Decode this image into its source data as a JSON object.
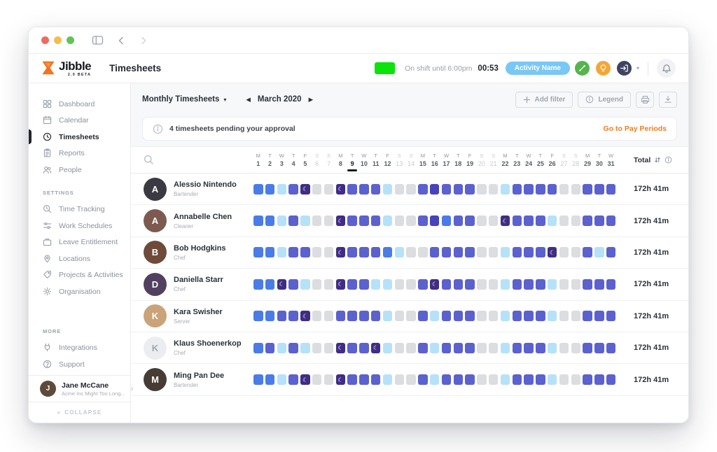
{
  "window_controls": {
    "buttons": [
      "close",
      "minimize",
      "zoom"
    ]
  },
  "titlebar": {
    "icons": [
      "sidebar-toggle",
      "back-chevron",
      "forward-chevron"
    ]
  },
  "header": {
    "logo_name": "Jibble",
    "logo_sub": "2.0 BETA",
    "page_title": "Timesheets",
    "status_color": "#0be30b",
    "shift_status": "On shift until 6:00pm",
    "timer": "00:53",
    "activity_badge": {
      "label": "Activity Name",
      "color": "#79c7f5"
    },
    "quick_circles": [
      {
        "icon": "activity",
        "color": "#56b44e"
      },
      {
        "icon": "bulb",
        "color": "#f2a73b"
      },
      {
        "icon": "clock-out",
        "color": "#3d4360"
      }
    ]
  },
  "sidebar": {
    "main": [
      {
        "label": "Dashboard",
        "icon": "dashboard",
        "active": false
      },
      {
        "label": "Calendar",
        "icon": "calendar",
        "active": false
      },
      {
        "label": "Timesheets",
        "icon": "clock",
        "active": true
      },
      {
        "label": "Reports",
        "icon": "clipboard",
        "active": false
      },
      {
        "label": "People",
        "icon": "people",
        "active": false
      }
    ],
    "settings_label": "SETTINGS",
    "settings": [
      {
        "label": "Time Tracking",
        "icon": "timetracking"
      },
      {
        "label": "Work Schedules",
        "icon": "schedules"
      },
      {
        "label": "Leave Entitlement",
        "icon": "briefcase"
      },
      {
        "label": "Locations",
        "icon": "location"
      },
      {
        "label": "Projects & Activities",
        "icon": "tag"
      },
      {
        "label": "Organisation",
        "icon": "gear"
      }
    ],
    "more_label": "MORE",
    "more": [
      {
        "label": "Integrations",
        "icon": "plug"
      },
      {
        "label": "Support",
        "icon": "question"
      }
    ],
    "user": {
      "name": "Jane McCane",
      "org": "Acme Inc Might Too Long...",
      "initial": "J",
      "avatar_color": "#5d4a3a"
    },
    "collapse_label": "COLLAPSE"
  },
  "toolbar": {
    "view_selector": "Monthly Timesheets",
    "period": "March 2020",
    "prev_arrow": "◀",
    "next_arrow": "▶",
    "add_filter_label": "Add filter",
    "legend_label": "Legend",
    "icon_buttons": [
      "printer",
      "download"
    ]
  },
  "banner": {
    "message": "4 timesheets pending your approval",
    "link": "Go to Pay Periods",
    "link_color": "#f47b20"
  },
  "table": {
    "total_label": "Total",
    "today_day": 9,
    "weekend_days": [
      6,
      7,
      13,
      14,
      20,
      21,
      27,
      28
    ],
    "days": [
      {
        "d": "M",
        "n": 1
      },
      {
        "d": "T",
        "n": 2
      },
      {
        "d": "W",
        "n": 3
      },
      {
        "d": "T",
        "n": 4
      },
      {
        "d": "F",
        "n": 5
      },
      {
        "d": "S",
        "n": 6
      },
      {
        "d": "S",
        "n": 7
      },
      {
        "d": "M",
        "n": 8
      },
      {
        "d": "T",
        "n": 9
      },
      {
        "d": "W",
        "n": 10
      },
      {
        "d": "T",
        "n": 11
      },
      {
        "d": "F",
        "n": 12
      },
      {
        "d": "S",
        "n": 13
      },
      {
        "d": "S",
        "n": 14
      },
      {
        "d": "M",
        "n": 15
      },
      {
        "d": "T",
        "n": 16
      },
      {
        "d": "W",
        "n": 17
      },
      {
        "d": "T",
        "n": 18
      },
      {
        "d": "F",
        "n": 19
      },
      {
        "d": "S",
        "n": 20
      },
      {
        "d": "S",
        "n": 21
      },
      {
        "d": "M",
        "n": 22
      },
      {
        "d": "T",
        "n": 23
      },
      {
        "d": "W",
        "n": 24
      },
      {
        "d": "T",
        "n": 25
      },
      {
        "d": "F",
        "n": 26
      },
      {
        "d": "S",
        "n": 27
      },
      {
        "d": "S",
        "n": 28
      },
      {
        "d": "M",
        "n": 29
      },
      {
        "d": "T",
        "n": 30
      },
      {
        "d": "W",
        "n": 31
      }
    ],
    "cell_colors": {
      "B": "#4a7ce8",
      "I": "#5b61ce",
      "N": "#4643bb",
      "L": "#b5e2f9",
      "D": "#3f2d85",
      "G": "#dcdde0"
    },
    "cell_legend": {
      "B": "tracked-day-blue",
      "I": "tracked-day-indigo",
      "N": "tracked-day-dark-indigo",
      "L": "partial-day-light-blue",
      "D": "night-shift-moon",
      "G": "no-time-gray"
    },
    "rows": [
      {
        "name": "Alessio Nintendo",
        "role": "Bartender",
        "initial": "A",
        "avatar_color": "#3b3a42",
        "cells": "BBLIDGGDIIILGGINIIIGGLIIIIGGIII",
        "total": "172h 41m"
      },
      {
        "name": "Annabelle Chen",
        "role": "Cleaner",
        "initial": "A",
        "avatar_color": "#7d5a4f",
        "cells": "BBLILGGDIIILGGINBIIGGDIIILGGIII",
        "total": "172h 41m"
      },
      {
        "name": "Bob Hodgkins",
        "role": "Chef",
        "initial": "B",
        "avatar_color": "#6e4a38",
        "cells": "BBLIIGGDIIIBLGGIIIIGGLIIIDGGILI",
        "total": "172h 41m"
      },
      {
        "name": "Daniella Starr",
        "role": "Chef",
        "initial": "D",
        "avatar_color": "#514060",
        "cells": "BBDILGGDIILLGGIDIIIGGLIIILGGIII",
        "total": "172h 41m"
      },
      {
        "name": "Kara Swisher",
        "role": "Server",
        "initial": "K",
        "avatar_color": "#caa37a",
        "cells": "BBIIDGGIIIILGGILIIIGGLIIILGGIII",
        "total": "172h 41m"
      },
      {
        "name": "Klaus Shoenerkop",
        "role": "Chef",
        "initial": "K",
        "avatar_color": "#ebedf0",
        "avatar_text_color": "#a0a6af",
        "cells": "BILILGGDIIDLGGILIIIGGLIIILGGIII",
        "total": "172h 41m"
      },
      {
        "name": "Ming Pan Dee",
        "role": "Bartender",
        "initial": "M",
        "avatar_color": "#463c34",
        "cells": "BBLIDGGDIIILGGILIIIGGLIIILGGIII",
        "total": "172h 41m"
      }
    ]
  }
}
